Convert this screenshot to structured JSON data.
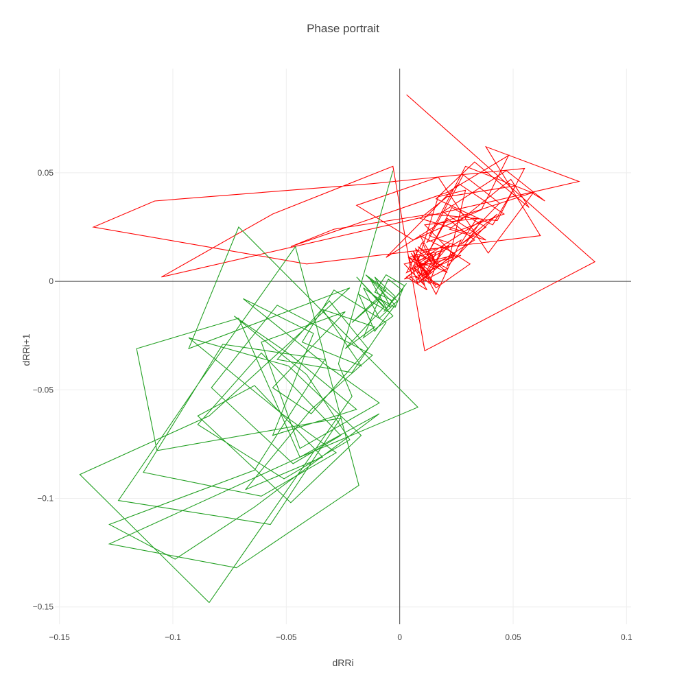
{
  "chart_data": {
    "type": "line",
    "title": "Phase portrait",
    "xlabel": "dRRi",
    "ylabel": "dRRi+1",
    "xlim": [
      -0.152,
      0.102
    ],
    "ylim": [
      -0.158,
      0.098
    ],
    "x_ticks": [
      -0.15,
      -0.1,
      -0.05,
      0,
      0.05,
      0.1
    ],
    "x_tick_labels": [
      "−0.15",
      "−0.1",
      "−0.05",
      "0",
      "0.05",
      "0.1"
    ],
    "y_ticks": [
      -0.15,
      -0.1,
      -0.05,
      0,
      0.05
    ],
    "y_tick_labels": [
      "−0.15",
      "−0.1",
      "−0.05",
      "0",
      "0.05"
    ],
    "grid": true,
    "zero_lines": true,
    "legend": "none",
    "series": [
      {
        "color": "#ff0000",
        "x": [
          0.003,
          0.086,
          0.011,
          -0.003,
          -0.056,
          -0.105,
          0.079,
          0.038,
          0.062,
          -0.041,
          -0.135,
          -0.108,
          -0.012,
          0.055,
          0.043,
          0.014,
          -0.029,
          -0.048,
          0.021,
          0.048,
          0.036,
          0.006,
          -0.019,
          0.017,
          0.039,
          0.059,
          0.018,
          -0.006,
          0.026,
          0.046,
          0.012,
          0.028,
          0.044,
          0.031,
          0.009,
          0.021,
          0.051,
          0.041,
          0.016,
          0.033,
          0.057,
          0.049,
          0.022,
          0.038,
          0.019,
          0.047,
          0.064,
          0.058,
          0.029,
          0.013,
          0.026,
          0.034,
          0.011,
          0.025,
          0.036,
          0.008,
          0.017,
          0.029,
          0.021,
          0.043,
          0.027,
          0.038,
          0.023,
          0.012,
          0.021,
          0.033,
          0.016,
          0.009,
          0.024,
          0.014,
          0.006,
          0.018,
          0.022,
          0.011,
          0.016,
          0.006,
          0.013,
          0.019,
          0.004,
          0.015,
          0.01,
          0.003,
          0.012,
          0.024,
          0.008,
          0.014,
          0.017,
          0.007,
          0.011,
          0.002,
          0.013,
          0.009,
          0.006,
          0.016,
          0.027,
          0.011,
          0.021,
          0.008,
          0.015,
          0.003,
          0.012,
          0.006,
          0.009,
          0.021,
          0.012,
          0.005,
          0.016,
          0.009,
          0.013,
          0.004,
          0.008,
          0.014,
          0.019,
          0.031,
          0.016,
          0.009,
          0.027,
          0.007,
          0.018,
          0.005,
          0.012,
          0.002,
          0.014,
          0.008,
          0.004
        ],
        "y": [
          0.086,
          0.009,
          -0.032,
          0.053,
          0.031,
          0.002,
          0.046,
          0.062,
          0.021,
          0.008,
          0.025,
          0.037,
          0.045,
          0.052,
          0.028,
          0.031,
          0.024,
          0.016,
          0.041,
          0.058,
          0.033,
          0.019,
          0.035,
          0.048,
          0.013,
          0.041,
          0.027,
          0.011,
          0.045,
          0.031,
          0.018,
          0.049,
          0.036,
          0.022,
          0.029,
          0.039,
          0.044,
          0.026,
          0.038,
          0.055,
          0.034,
          0.047,
          0.024,
          0.019,
          0.032,
          0.051,
          0.037,
          0.041,
          0.053,
          0.021,
          0.016,
          0.029,
          0.026,
          0.011,
          0.028,
          0.009,
          0.039,
          0.042,
          0.007,
          0.031,
          0.017,
          0.025,
          0.034,
          0.012,
          0.029,
          0.019,
          0.008,
          0.021,
          0.013,
          0.004,
          0.011,
          0.014,
          0.017,
          0.003,
          0.013,
          0.007,
          -0.001,
          0.016,
          0.011,
          0.006,
          0.018,
          0.004,
          0.009,
          0.012,
          0.001,
          0.013,
          0.006,
          0.015,
          -0.002,
          0.008,
          0.011,
          0.003,
          0.014,
          -0.006,
          0.019,
          0.009,
          0.004,
          0.016,
          0.011,
          0.002,
          -0.004,
          0.007,
          0.012,
          0.006,
          0.001,
          0.013,
          -0.002,
          0.008,
          0.003,
          0.011,
          -0.001,
          0.005,
          0.016,
          0.008,
          -0.003,
          0.007,
          0.012,
          0.002,
          -0.002,
          0.006,
          0.009,
          0.001,
          0.004,
          -0.001,
          0.003
        ]
      },
      {
        "color": "#22a022",
        "x": [
          -0.003,
          -0.027,
          -0.021,
          -0.084,
          -0.141,
          -0.084,
          -0.022,
          -0.093,
          -0.071,
          0.008,
          -0.044,
          -0.128,
          -0.072,
          -0.018,
          -0.046,
          -0.088,
          -0.124,
          -0.057,
          -0.026,
          -0.107,
          -0.116,
          -0.071,
          -0.044,
          -0.009,
          -0.064,
          -0.099,
          -0.128,
          -0.064,
          -0.033,
          -0.078,
          -0.113,
          -0.061,
          -0.028,
          -0.052,
          -0.093,
          -0.049,
          -0.017,
          -0.048,
          -0.089,
          -0.064,
          -0.034,
          -0.068,
          -0.039,
          -0.012,
          -0.054,
          -0.083,
          -0.047,
          -0.026,
          -0.061,
          -0.089,
          -0.051,
          -0.022,
          -0.041,
          -0.073,
          -0.048,
          -0.019,
          -0.056,
          -0.038,
          -0.069,
          -0.032,
          -0.009,
          -0.044,
          -0.061,
          -0.024,
          -0.056,
          -0.039,
          -0.014,
          -0.031,
          -0.054,
          -0.021,
          -0.006,
          -0.029,
          -0.043,
          -0.017,
          -0.034,
          -0.011,
          -0.024,
          -0.007,
          -0.019,
          -0.003,
          -0.016,
          -0.009,
          -0.021,
          -0.006,
          -0.015,
          -0.002,
          -0.011,
          -0.018,
          -0.005,
          -0.013,
          -0.001,
          -0.009,
          -0.016,
          -0.004,
          -0.011,
          -0.002,
          -0.007,
          0.001,
          -0.005,
          -0.009,
          -0.002,
          0.002,
          -0.006,
          -0.011,
          -0.003,
          0.003
        ],
        "y": [
          0.051,
          -0.038,
          -0.053,
          -0.148,
          -0.089,
          -0.062,
          -0.003,
          -0.031,
          0.025,
          -0.058,
          -0.081,
          -0.121,
          -0.132,
          -0.094,
          0.016,
          -0.046,
          -0.101,
          -0.112,
          -0.063,
          -0.078,
          -0.031,
          -0.017,
          -0.081,
          -0.061,
          -0.104,
          -0.128,
          -0.112,
          -0.087,
          -0.036,
          -0.029,
          -0.088,
          -0.099,
          -0.079,
          -0.061,
          -0.026,
          -0.039,
          -0.071,
          -0.102,
          -0.062,
          -0.048,
          -0.081,
          -0.096,
          -0.059,
          -0.034,
          -0.011,
          -0.049,
          -0.084,
          -0.071,
          -0.033,
          -0.066,
          -0.091,
          -0.073,
          -0.043,
          -0.016,
          -0.034,
          -0.059,
          -0.071,
          -0.024,
          -0.008,
          -0.039,
          -0.056,
          -0.077,
          -0.028,
          -0.014,
          -0.049,
          -0.061,
          -0.031,
          -0.009,
          -0.036,
          -0.042,
          -0.019,
          -0.004,
          -0.028,
          -0.039,
          -0.013,
          -0.021,
          -0.031,
          -0.012,
          0.002,
          -0.016,
          -0.026,
          -0.008,
          -0.019,
          -0.004,
          0.003,
          -0.011,
          -0.023,
          -0.006,
          -0.014,
          0.001,
          -0.009,
          -0.017,
          -0.003,
          -0.012,
          0.002,
          -0.007,
          -0.014,
          -0.004,
          0.001,
          -0.008,
          -0.012,
          -0.002,
          0.003,
          -0.005,
          -0.009,
          -0.001
        ]
      }
    ]
  }
}
